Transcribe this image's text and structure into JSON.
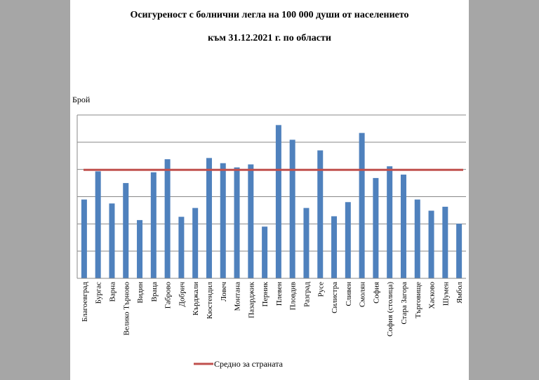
{
  "title_line1": "Осигуреност с болнични легла на 100 000 души от населението",
  "title_line2": "към 31.12.2021 г. по области",
  "chart_data": {
    "type": "bar",
    "title": "Осигуреност с болнични легла на 100 000 души от населението към 31.12.2021 г. по области",
    "ylabel": "Брой",
    "xlabel": "",
    "ylim": [
      0,
      1200
    ],
    "yticks": [
      0,
      200,
      400,
      600,
      800,
      1000,
      1200
    ],
    "grid": true,
    "categories": [
      "Благоевград",
      "Бургас",
      "Варна",
      "Велико Търново",
      "Видин",
      "Враца",
      "Габрово",
      "Добрич",
      "Кърджали",
      "Кюстендил",
      "Ловеч",
      "Монтана",
      "Пазарджик",
      "Перник",
      "Плевен",
      "Пловдив",
      "Разград",
      "Русе",
      "Силистра",
      "Сливен",
      "Смолян",
      "София",
      "София (столица)",
      "Стара Загора",
      "Търговище",
      "Хасково",
      "Шумен",
      "Ямбол"
    ],
    "values": [
      579,
      786,
      550,
      700,
      428,
      779,
      875,
      452,
      517,
      884,
      846,
      815,
      837,
      380,
      1126,
      1018,
      517,
      940,
      456,
      560,
      1068,
      737,
      823,
      762,
      579,
      497,
      526,
      401
    ],
    "bar_color": "#4f81bd",
    "average": {
      "name": "Средно за страната",
      "value": 796.8,
      "label": "796.8",
      "color": "#c0504d"
    },
    "legend_position": "bottom"
  }
}
